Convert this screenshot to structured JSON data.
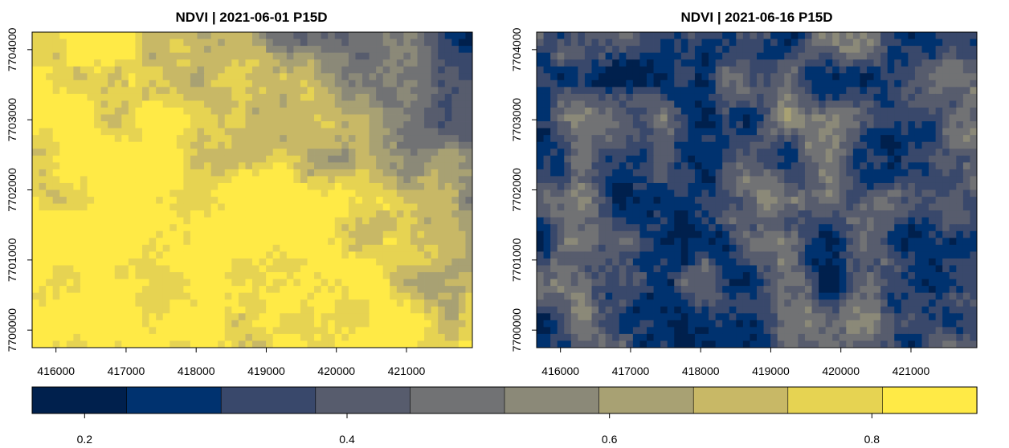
{
  "panels": [
    {
      "title": "NDVI | 2021-06-01 P15D",
      "x_ticks": [
        "416000",
        "417000",
        "418000",
        "419000",
        "420000",
        "421000"
      ],
      "y_ticks": [
        "7700000",
        "7701000",
        "7702000",
        "7703000",
        "7704000"
      ],
      "mean_ndvi_description": "high NDVI (yellow) in west/south-west, low NDVI (blue) in north-east"
    },
    {
      "title": "NDVI | 2021-06-16 P15D",
      "x_ticks": [
        "416000",
        "417000",
        "418000",
        "419000",
        "420000",
        "421000"
      ],
      "y_ticks": [
        "7700000",
        "7701000",
        "7702000",
        "7703000",
        "7704000"
      ],
      "mean_ndvi_description": "mostly low NDVI (blue) with grey-yellow patches"
    }
  ],
  "legend": {
    "ticks": [
      "0.2",
      "0.4",
      "0.6",
      "0.8"
    ],
    "colors": [
      "#00204d",
      "#00326f",
      "#39486b",
      "#575c6d",
      "#717274",
      "#8b8978",
      "#a8a173",
      "#c8b866",
      "#e6d352",
      "#ffea46"
    ]
  },
  "chart_data": [
    {
      "type": "heatmap",
      "title": "NDVI | 2021-06-01 P15D",
      "xlim": [
        415660,
        421940
      ],
      "ylim": [
        7699750,
        7704250
      ],
      "x_ticks": [
        416000,
        417000,
        418000,
        419000,
        420000,
        421000
      ],
      "y_ticks": [
        7700000,
        7701000,
        7702000,
        7703000,
        7704000
      ],
      "colorscale": "cividis",
      "value_range": [
        0.16,
        0.88
      ]
    },
    {
      "type": "heatmap",
      "title": "NDVI | 2021-06-16 P15D",
      "xlim": [
        415660,
        421940
      ],
      "ylim": [
        7699750,
        7704250
      ],
      "x_ticks": [
        416000,
        417000,
        418000,
        419000,
        420000,
        421000
      ],
      "y_ticks": [
        7700000,
        7701000,
        7702000,
        7703000,
        7704000
      ],
      "colorscale": "cividis",
      "value_range": [
        0.16,
        0.88
      ]
    }
  ]
}
